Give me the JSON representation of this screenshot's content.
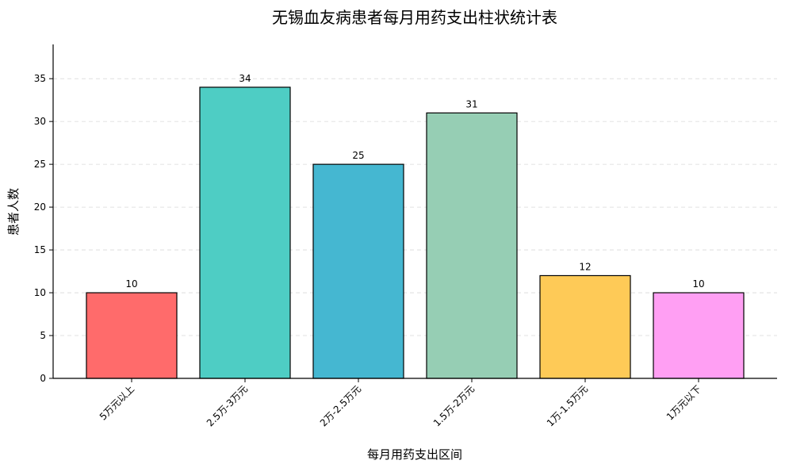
{
  "chart_data": {
    "type": "bar",
    "title": "无锡血友病患者每月用药支出柱状统计表",
    "xlabel": "每月用药支出区间",
    "ylabel": "患者人数",
    "categories": [
      "5万元以上",
      "2.5万-3万元",
      "2万-2.5万元",
      "1.5万-2万元",
      "1万-1.5万元",
      "1万元以下"
    ],
    "values": [
      10,
      34,
      25,
      31,
      12,
      10
    ],
    "colors": [
      "#ff6b6b",
      "#4ecdc4",
      "#45b7d1",
      "#96ceb4",
      "#feca57",
      "#ff9ff3"
    ],
    "ylim": [
      0,
      39
    ],
    "yticks": [
      0,
      5,
      10,
      15,
      20,
      25,
      30,
      35
    ],
    "grid": "y-dashed",
    "legend": "none"
  }
}
